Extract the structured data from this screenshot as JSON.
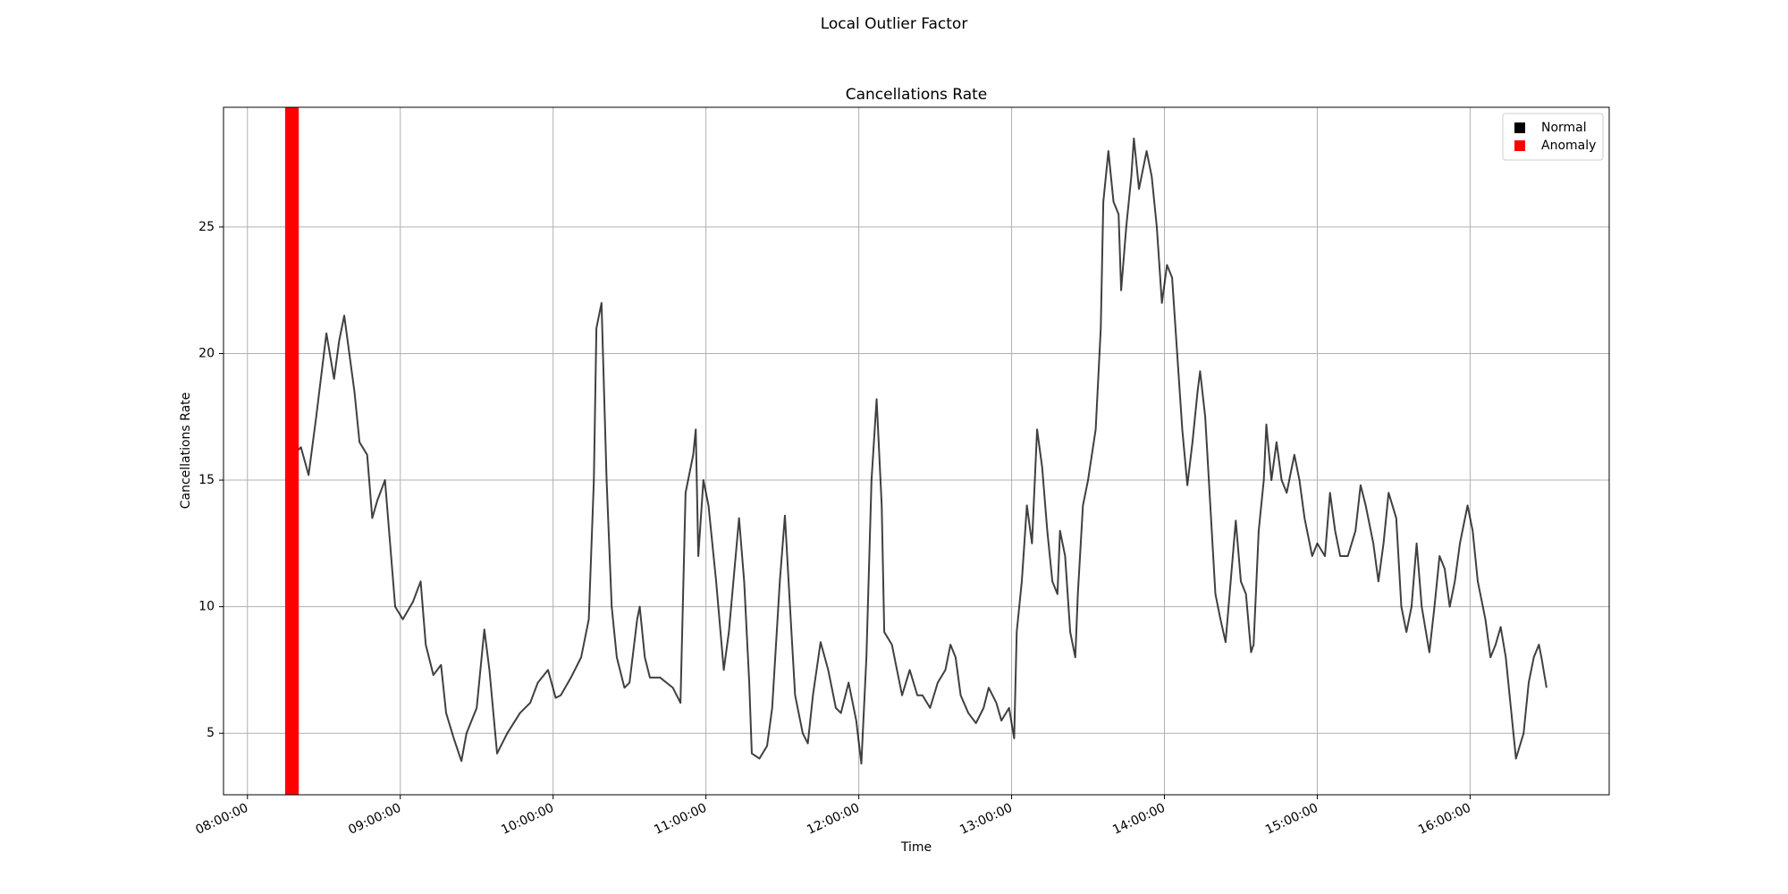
{
  "chart_data": {
    "type": "line",
    "suptitle": "Local Outlier Factor",
    "title": "Cancellations Rate",
    "xlabel": "Time",
    "ylabel": "Cancellations Rate",
    "grid": true,
    "legend": "upper right",
    "xlim": [
      "07:50:36",
      "16:54:36"
    ],
    "xticks": [
      "08:00:00",
      "09:00:00",
      "10:00:00",
      "11:00:00",
      "12:00:00",
      "13:00:00",
      "14:00:00",
      "15:00:00",
      "16:00:00"
    ],
    "ylim": [
      2.57,
      29.73
    ],
    "yticks": [
      5,
      10,
      15,
      20,
      25
    ],
    "x": [
      "08:16:00",
      "08:18:00",
      "08:21:00",
      "08:24:00",
      "08:27:00",
      "08:31:00",
      "08:34:00",
      "08:36:00",
      "08:38:00",
      "08:42:00",
      "08:44:00",
      "08:47:00",
      "08:49:00",
      "08:51:00",
      "08:54:00",
      "08:56:00",
      "08:58:00",
      "09:01:00",
      "09:05:00",
      "09:08:00",
      "09:10:00",
      "09:13:00",
      "09:16:00",
      "09:18:00",
      "09:21:00",
      "09:24:00",
      "09:26:00",
      "09:30:00",
      "09:33:00",
      "09:35:00",
      "09:38:00",
      "09:42:00",
      "09:47:00",
      "09:51:00",
      "09:54:00",
      "09:58:00",
      "10:01:00",
      "10:03:00",
      "10:07:00",
      "10:11:00",
      "10:14:00",
      "10:16:00",
      "10:17:00",
      "10:19:00",
      "10:21:00",
      "10:23:00",
      "10:25:00",
      "10:28:00",
      "10:30:00",
      "10:33:00",
      "10:34:00",
      "10:36:00",
      "10:38:00",
      "10:42:00",
      "10:47:00",
      "10:50:00",
      "10:52:00",
      "10:55:00",
      "10:56:00",
      "10:57:00",
      "10:59:00",
      "11:01:00",
      "11:04:00",
      "11:07:00",
      "11:09:00",
      "11:13:00",
      "11:15:00",
      "11:17:00",
      "11:18:00",
      "11:21:00",
      "11:24:00",
      "11:26:00",
      "11:29:00",
      "11:31:00",
      "11:33:00",
      "11:35:00",
      "11:38:00",
      "11:40:00",
      "11:42:00",
      "11:45:00",
      "11:48:00",
      "11:51:00",
      "11:53:00",
      "11:56:00",
      "11:59:00",
      "12:01:00",
      "12:03:00",
      "12:05:00",
      "12:07:00",
      "12:09:00",
      "12:10:00",
      "12:13:00",
      "12:15:00",
      "12:17:00",
      "12:20:00",
      "12:23:00",
      "12:25:00",
      "12:28:00",
      "12:31:00",
      "12:34:00",
      "12:36:00",
      "12:38:00",
      "12:40:00",
      "12:43:00",
      "12:46:00",
      "12:49:00",
      "12:51:00",
      "12:54:00",
      "12:56:00",
      "12:59:00",
      "13:01:00",
      "13:02:00",
      "13:04:00",
      "13:06:00",
      "13:08:00",
      "13:10:00",
      "13:12:00",
      "13:14:00",
      "13:16:00",
      "13:18:00",
      "13:19:00",
      "13:21:00",
      "13:23:00",
      "13:25:00",
      "13:26:00",
      "13:28:00",
      "13:30:00",
      "13:33:00",
      "13:35:00",
      "13:36:00",
      "13:38:00",
      "13:40:00",
      "13:42:00",
      "13:43:00",
      "13:45:00",
      "13:47:00",
      "13:48:00",
      "13:50:00",
      "13:53:00",
      "13:55:00",
      "13:57:00",
      "13:59:00",
      "14:01:00",
      "14:03:00",
      "14:05:00",
      "14:07:00",
      "14:09:00",
      "14:11:00",
      "14:13:00",
      "14:14:00",
      "14:16:00",
      "14:18:00",
      "14:20:00",
      "14:22:00",
      "14:24:00",
      "14:26:00",
      "14:28:00",
      "14:30:00",
      "14:32:00",
      "14:34:00",
      "14:35:00",
      "14:37:00",
      "14:39:00",
      "14:40:00",
      "14:42:00",
      "14:44:00",
      "14:46:00",
      "14:48:00",
      "14:51:00",
      "14:53:00",
      "14:55:00",
      "14:58:00",
      "15:00:00",
      "15:03:00",
      "15:05:00",
      "15:07:00",
      "15:09:00",
      "15:12:00",
      "15:15:00",
      "15:17:00",
      "15:19:00",
      "15:22:00",
      "15:24:00",
      "15:26:00",
      "15:28:00",
      "15:31:00",
      "15:33:00",
      "15:35:00",
      "15:37:00",
      "15:39:00",
      "15:41:00",
      "15:44:00",
      "15:46:00",
      "15:48:00",
      "15:50:00",
      "15:52:00",
      "15:54:00",
      "15:56:00",
      "15:59:00",
      "16:01:00",
      "16:03:00",
      "16:04:00",
      "16:06:00",
      "16:08:00",
      "16:10:00",
      "16:12:00",
      "16:14:00",
      "16:16:00",
      "16:18:00",
      "16:21:00",
      "16:23:00",
      "16:25:00",
      "16:27:00",
      "16:28:00",
      "16:30:00"
    ],
    "series": [
      {
        "name": "Normal",
        "color": "#000000",
        "values": [
          12.0,
          16.0,
          16.3,
          15.2,
          17.5,
          20.8,
          19.0,
          20.5,
          21.5,
          18.5,
          16.5,
          16.0,
          13.5,
          14.2,
          15.0,
          12.5,
          10.0,
          9.5,
          10.2,
          11.0,
          8.5,
          7.3,
          7.7,
          5.8,
          4.8,
          3.9,
          5.0,
          6.0,
          9.1,
          7.5,
          4.2,
          5.0,
          5.8,
          6.2,
          7.0,
          7.5,
          6.4,
          6.5,
          7.2,
          8.0,
          9.5,
          15.0,
          21.0,
          22.0,
          15.0,
          10.0,
          8.0,
          6.8,
          7.0,
          9.5,
          10.0,
          8.0,
          7.2,
          7.2,
          6.8,
          6.2,
          14.5,
          16.0,
          17.0,
          12.0,
          15.0,
          14.0,
          11.0,
          7.5,
          9.0,
          13.5,
          11.0,
          7.0,
          4.2,
          4.0,
          4.5,
          6.0,
          11.0,
          13.6,
          10.0,
          6.5,
          5.0,
          4.6,
          6.5,
          8.6,
          7.5,
          6.0,
          5.8,
          7.0,
          5.5,
          3.8,
          8.0,
          15.0,
          18.2,
          14.0,
          9.0,
          8.5,
          7.5,
          6.5,
          7.5,
          6.5,
          6.5,
          6.0,
          7.0,
          7.5,
          8.5,
          8.0,
          6.5,
          5.8,
          5.4,
          6.0,
          6.8,
          6.2,
          5.5,
          6.0,
          4.8,
          9.0,
          11.0,
          14.0,
          12.5,
          17.0,
          15.5,
          13.0,
          11.0,
          10.5,
          13.0,
          12.0,
          9.0,
          8.0,
          10.5,
          14.0,
          15.0,
          17.0,
          21.0,
          26.0,
          28.0,
          26.0,
          25.5,
          22.5,
          25.0,
          27.0,
          28.5,
          26.5,
          28.0,
          27.0,
          25.0,
          22.0,
          23.5,
          23.0,
          20.0,
          17.0,
          14.8,
          16.5,
          18.5,
          19.3,
          17.5,
          14.0,
          10.5,
          9.5,
          8.6,
          11.0,
          13.4,
          11.0,
          10.5,
          8.2,
          8.5,
          13.0,
          15.0,
          17.2,
          15.0,
          16.5,
          15.0,
          14.5,
          16.0,
          15.0,
          13.5,
          12.0,
          12.5,
          12.0,
          14.5,
          13.0,
          12.0,
          12.0,
          13.0,
          14.8,
          14.0,
          12.5,
          11.0,
          12.5,
          14.5,
          13.5,
          10.0,
          9.0,
          10.0,
          12.5,
          10.0,
          8.2,
          10.0,
          12.0,
          11.5,
          10.0,
          11.0,
          12.5,
          14.0,
          13.0,
          11.0,
          10.5,
          9.5,
          8.0,
          8.5,
          9.2,
          8.0,
          6.0,
          4.0,
          5.0,
          7.0,
          8.0,
          8.5,
          8.0,
          6.8
        ]
      },
      {
        "name": "Anomaly",
        "color": "#ff0000",
        "ranges": [
          [
            "08:14:47",
            "08:20:09"
          ]
        ]
      }
    ]
  }
}
